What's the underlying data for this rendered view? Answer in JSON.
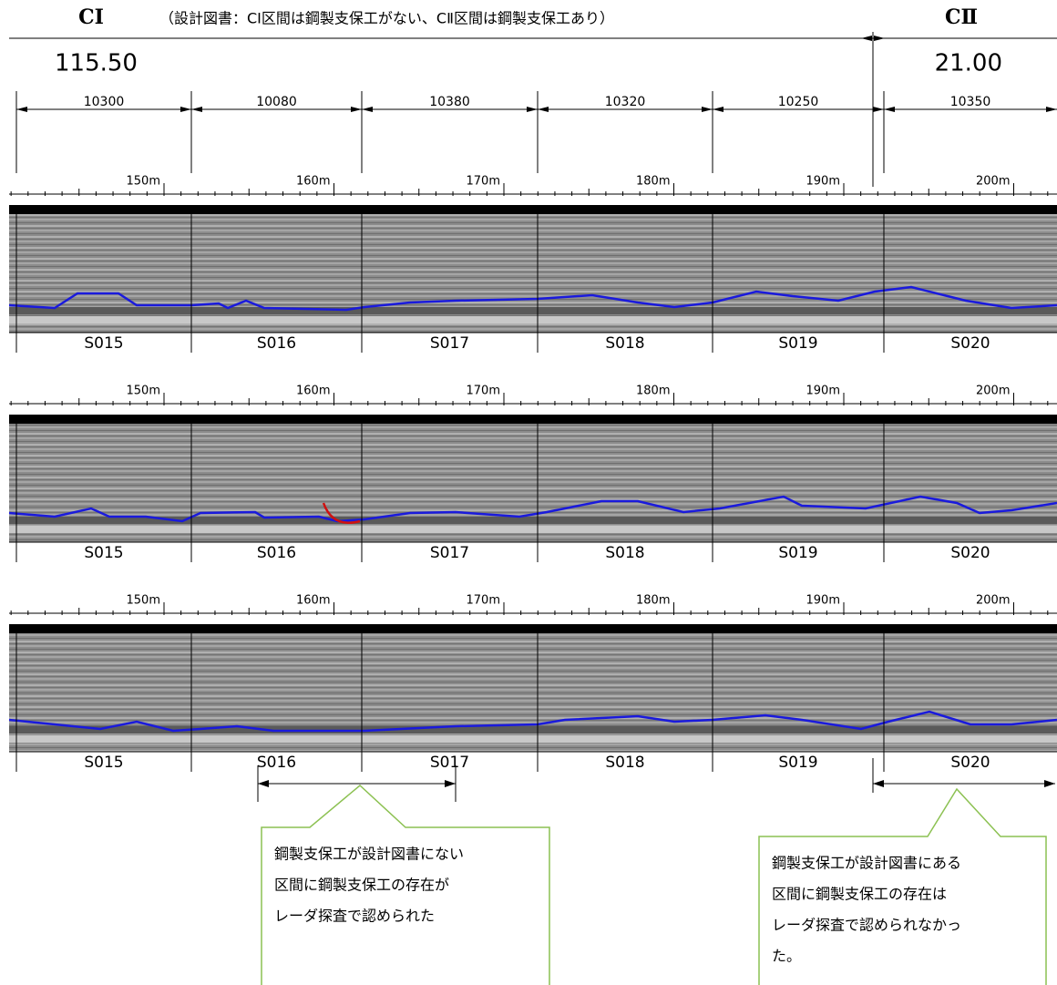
{
  "header": {
    "left_label": "CⅠ",
    "note": "（設計図書：CⅠ区間は鋼製支保工がない、CⅡ区間は鋼製支保工あり）",
    "right_label": "CⅡ",
    "left_value": "115.50",
    "right_value": "21.00"
  },
  "spans": [
    "10300",
    "10080",
    "10380",
    "10320",
    "10250",
    "10350"
  ],
  "scale_labels": [
    "150m",
    "160m",
    "170m",
    "180m",
    "190m",
    "200m"
  ],
  "sections": [
    "S015",
    "S016",
    "S017",
    "S018",
    "S019",
    "S020"
  ],
  "callouts": [
    {
      "lines": [
        "鋼製支保工が設計図書にない",
        "区間に鋼製支保工の存在が",
        "レーダ探査で認められた"
      ]
    },
    {
      "lines": [
        "鋼製支保工が設計図書にある",
        "区間に鋼製支保工の存在は",
        "レーダ探査で認められなかっ",
        "た。"
      ]
    }
  ]
}
